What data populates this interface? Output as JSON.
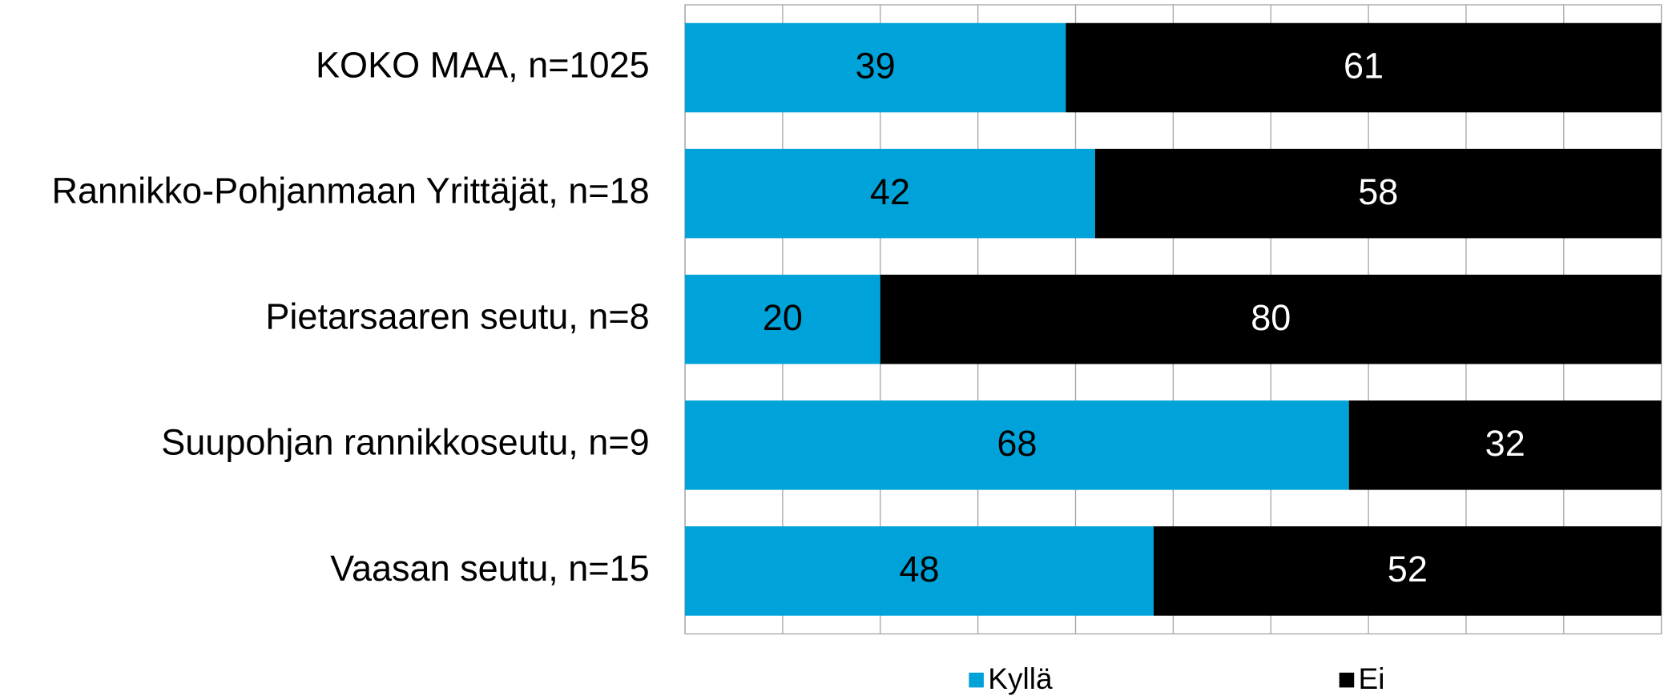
{
  "chart_data": {
    "type": "stacked-bar-horizontal",
    "categories": [
      "KOKO MAA, n=1025",
      "Rannikko-Pohjanmaan Yrittäjät, n=18",
      "Pietarsaaren seutu, n=8",
      "Suupohjan rannikkoseutu, n=9",
      "Vaasan seutu, n=15"
    ],
    "series": [
      {
        "name": "Kyllä",
        "color": "#00a3d9",
        "label_color": "#000000",
        "values": [
          39,
          42,
          20,
          68,
          48
        ]
      },
      {
        "name": "Ei",
        "color": "#000000",
        "label_color": "#ffffff",
        "values": [
          61,
          58,
          80,
          32,
          52
        ]
      }
    ],
    "xlim": [
      0,
      100
    ],
    "xticks": [
      0,
      10,
      20,
      30,
      40,
      50,
      60,
      70,
      80,
      90,
      100
    ],
    "grid": true,
    "legend": "bottom"
  }
}
